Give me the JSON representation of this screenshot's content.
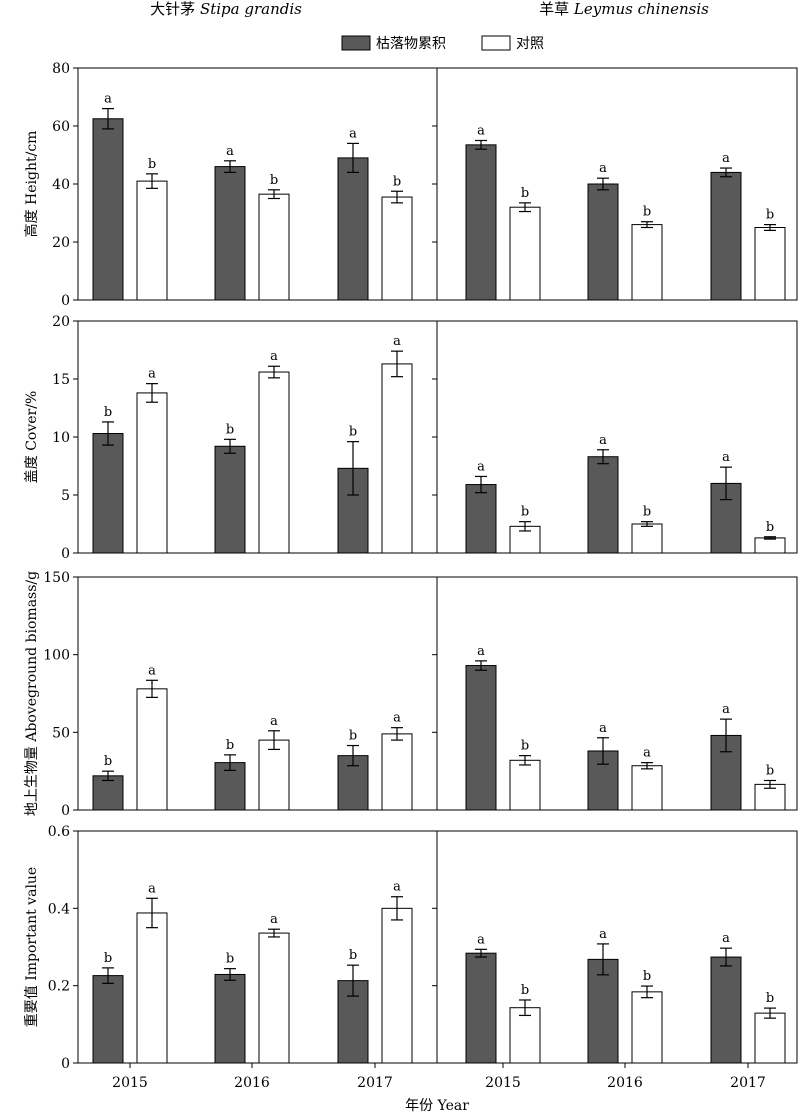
{
  "legend": {
    "entries": [
      {
        "label": "枯落物累积",
        "color": "#595959"
      },
      {
        "label": "对照",
        "color": "#ffffff"
      }
    ]
  },
  "xlabel": "年份 Year",
  "column_titles": [
    {
      "prefix": "大针茅 ",
      "species": "Stipa grandis"
    },
    {
      "prefix": "羊草 ",
      "species": "Leymus chinensis"
    }
  ],
  "colors": {
    "litter": "#595959",
    "control": "#ffffff",
    "stroke": "#000000"
  },
  "chart_data": [
    {
      "type": "bar",
      "title": "大针茅 Stipa grandis",
      "ylabel": "高度 Height/cm",
      "ylim": [
        0,
        80
      ],
      "yticks": [
        0,
        20,
        40,
        60,
        80
      ],
      "categories": [
        "2015",
        "2016",
        "2017"
      ],
      "series": [
        {
          "name": "枯落物累积",
          "values": [
            62.5,
            46,
            49
          ],
          "errors": [
            3.5,
            2,
            5
          ],
          "letters": [
            "a",
            "a",
            "a"
          ]
        },
        {
          "name": "对照",
          "values": [
            41,
            36.5,
            35.5
          ],
          "errors": [
            2.5,
            1.5,
            2
          ],
          "letters": [
            "b",
            "b",
            "b"
          ]
        }
      ]
    },
    {
      "type": "bar",
      "title": "羊草 Leymus chinensis",
      "ylabel": "",
      "ylim": [
        0,
        80
      ],
      "yticks": [],
      "categories": [
        "2015",
        "2016",
        "2017"
      ],
      "series": [
        {
          "name": "枯落物累积",
          "values": [
            53.5,
            40,
            44
          ],
          "errors": [
            1.5,
            2,
            1.5
          ],
          "letters": [
            "a",
            "a",
            "a"
          ]
        },
        {
          "name": "对照",
          "values": [
            32,
            26,
            25
          ],
          "errors": [
            1.5,
            1,
            1
          ],
          "letters": [
            "b",
            "b",
            "b"
          ]
        }
      ]
    },
    {
      "type": "bar",
      "title": "",
      "ylabel": "盖度 Cover/%",
      "ylim": [
        0,
        20
      ],
      "yticks": [
        0,
        5,
        10,
        15,
        20
      ],
      "categories": [
        "2015",
        "2016",
        "2017"
      ],
      "series": [
        {
          "name": "枯落物累积",
          "values": [
            10.3,
            9.2,
            7.3
          ],
          "errors": [
            1,
            0.6,
            2.3
          ],
          "letters": [
            "b",
            "b",
            "b"
          ]
        },
        {
          "name": "对照",
          "values": [
            13.8,
            15.6,
            16.3
          ],
          "errors": [
            0.8,
            0.5,
            1.1
          ],
          "letters": [
            "a",
            "a",
            "a"
          ]
        }
      ]
    },
    {
      "type": "bar",
      "title": "",
      "ylabel": "",
      "ylim": [
        0,
        20
      ],
      "yticks": [],
      "categories": [
        "2015",
        "2016",
        "2017"
      ],
      "series": [
        {
          "name": "枯落物累积",
          "values": [
            5.9,
            8.3,
            6
          ],
          "errors": [
            0.7,
            0.6,
            1.4
          ],
          "letters": [
            "a",
            "a",
            "a"
          ]
        },
        {
          "name": "对照",
          "values": [
            2.3,
            2.5,
            1.3
          ],
          "errors": [
            0.4,
            0.2,
            0.1
          ],
          "letters": [
            "b",
            "b",
            "b"
          ]
        }
      ]
    },
    {
      "type": "bar",
      "title": "",
      "ylabel": "地上生物量 Aboveground biomass/g",
      "ylim": [
        0,
        150
      ],
      "yticks": [
        0,
        50,
        100,
        150
      ],
      "categories": [
        "2015",
        "2016",
        "2017"
      ],
      "series": [
        {
          "name": "枯落物累积",
          "values": [
            22,
            30.5,
            35
          ],
          "errors": [
            3,
            5,
            6.5
          ],
          "letters": [
            "b",
            "b",
            "b"
          ]
        },
        {
          "name": "对照",
          "values": [
            78,
            45,
            49
          ],
          "errors": [
            5.5,
            6,
            4
          ],
          "letters": [
            "a",
            "a",
            "a"
          ]
        }
      ]
    },
    {
      "type": "bar",
      "title": "",
      "ylabel": "",
      "ylim": [
        0,
        150
      ],
      "yticks": [],
      "categories": [
        "2015",
        "2016",
        "2017"
      ],
      "series": [
        {
          "name": "枯落物累积",
          "values": [
            93,
            38,
            48
          ],
          "errors": [
            3,
            8.5,
            10.5
          ],
          "letters": [
            "a",
            "a",
            "a"
          ]
        },
        {
          "name": "对照",
          "values": [
            32,
            28.5,
            16.5
          ],
          "errors": [
            3,
            2,
            2.5
          ],
          "letters": [
            "b",
            "a",
            "b"
          ]
        }
      ]
    },
    {
      "type": "bar",
      "title": "",
      "ylabel": "重要值 Important value",
      "ylim": [
        0,
        0.6
      ],
      "yticks": [
        "0",
        "0.2",
        "0.4",
        "0.6"
      ],
      "categories": [
        "2015",
        "2016",
        "2017"
      ],
      "series": [
        {
          "name": "枯落物累积",
          "values": [
            0.226,
            0.229,
            0.213
          ],
          "errors": [
            0.02,
            0.015,
            0.04
          ],
          "letters": [
            "b",
            "b",
            "b"
          ]
        },
        {
          "name": "对照",
          "values": [
            0.388,
            0.336,
            0.4
          ],
          "errors": [
            0.038,
            0.01,
            0.03
          ],
          "letters": [
            "a",
            "a",
            "a"
          ]
        }
      ]
    },
    {
      "type": "bar",
      "title": "",
      "ylabel": "",
      "ylim": [
        0,
        0.6
      ],
      "yticks": [],
      "categories": [
        "2015",
        "2016",
        "2017"
      ],
      "series": [
        {
          "name": "枯落物累积",
          "values": [
            0.284,
            0.268,
            0.274
          ],
          "errors": [
            0.01,
            0.04,
            0.023
          ],
          "letters": [
            "a",
            "a",
            "a"
          ]
        },
        {
          "name": "对照",
          "values": [
            0.143,
            0.184,
            0.129
          ],
          "errors": [
            0.02,
            0.015,
            0.013
          ],
          "letters": [
            "b",
            "b",
            "b"
          ]
        }
      ]
    }
  ]
}
